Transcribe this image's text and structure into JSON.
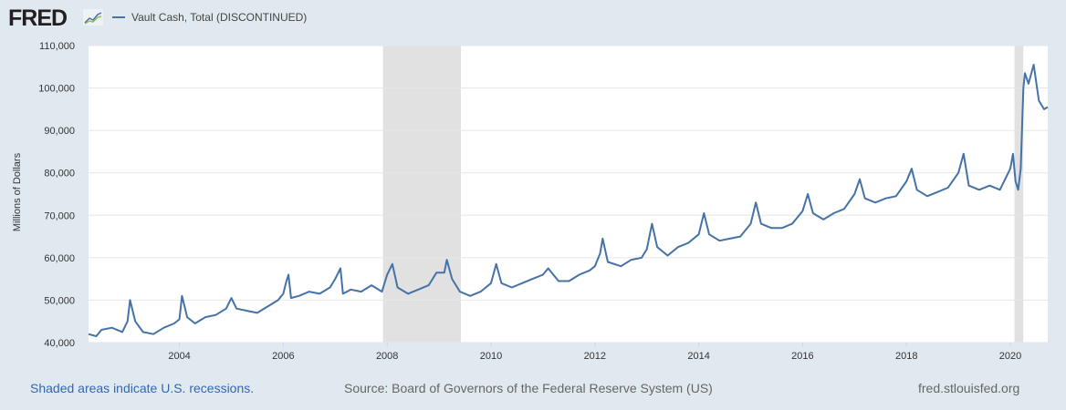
{
  "header": {
    "logo": "FRED",
    "legend_label": "Vault Cash, Total (DISCONTINUED)",
    "series_color": "#4572a7"
  },
  "footer": {
    "recession_note": "Shaded areas indicate U.S. recessions.",
    "source": "Source: Board of Governors of the Federal Reserve System (US)",
    "site": "fred.stlouisfed.org"
  },
  "chart_data": {
    "type": "line",
    "title": "Vault Cash, Total (DISCONTINUED)",
    "xlabel": "",
    "ylabel": "Millions of Dollars",
    "xlim": [
      2002.25,
      2020.72
    ],
    "ylim": [
      40000,
      110000
    ],
    "yticks": [
      40000,
      50000,
      60000,
      70000,
      80000,
      90000,
      100000,
      110000
    ],
    "ytick_labels": [
      "40,000",
      "50,000",
      "60,000",
      "70,000",
      "80,000",
      "90,000",
      "100,000",
      "110,000"
    ],
    "xticks": [
      2004,
      2006,
      2008,
      2010,
      2012,
      2014,
      2016,
      2018,
      2020
    ],
    "xtick_labels": [
      "2004",
      "2006",
      "2008",
      "2010",
      "2012",
      "2014",
      "2016",
      "2018",
      "2020"
    ],
    "grid": true,
    "recessions": [
      [
        2007.92,
        2009.42
      ],
      [
        2020.08,
        2020.25
      ]
    ],
    "series": [
      {
        "name": "Vault Cash, Total (DISCONTINUED)",
        "points": [
          [
            2002.25,
            42000
          ],
          [
            2002.4,
            41500
          ],
          [
            2002.5,
            43000
          ],
          [
            2002.7,
            43500
          ],
          [
            2002.9,
            42500
          ],
          [
            2003.0,
            45000
          ],
          [
            2003.05,
            50000
          ],
          [
            2003.15,
            45000
          ],
          [
            2003.3,
            42500
          ],
          [
            2003.5,
            42000
          ],
          [
            2003.7,
            43500
          ],
          [
            2003.9,
            44500
          ],
          [
            2004.0,
            45500
          ],
          [
            2004.05,
            51000
          ],
          [
            2004.15,
            46000
          ],
          [
            2004.3,
            44500
          ],
          [
            2004.5,
            46000
          ],
          [
            2004.7,
            46500
          ],
          [
            2004.9,
            48000
          ],
          [
            2005.0,
            50500
          ],
          [
            2005.1,
            48000
          ],
          [
            2005.3,
            47500
          ],
          [
            2005.5,
            47000
          ],
          [
            2005.7,
            48500
          ],
          [
            2005.9,
            50000
          ],
          [
            2006.0,
            51500
          ],
          [
            2006.05,
            54000
          ],
          [
            2006.1,
            56000
          ],
          [
            2006.15,
            50500
          ],
          [
            2006.3,
            51000
          ],
          [
            2006.5,
            52000
          ],
          [
            2006.7,
            51500
          ],
          [
            2006.9,
            53000
          ],
          [
            2007.0,
            55000
          ],
          [
            2007.1,
            57500
          ],
          [
            2007.15,
            51500
          ],
          [
            2007.3,
            52500
          ],
          [
            2007.5,
            52000
          ],
          [
            2007.7,
            53500
          ],
          [
            2007.9,
            52000
          ],
          [
            2008.0,
            56000
          ],
          [
            2008.1,
            58500
          ],
          [
            2008.2,
            53000
          ],
          [
            2008.4,
            51500
          ],
          [
            2008.6,
            52500
          ],
          [
            2008.8,
            53500
          ],
          [
            2008.95,
            56500
          ],
          [
            2009.1,
            56500
          ],
          [
            2009.15,
            59500
          ],
          [
            2009.25,
            55000
          ],
          [
            2009.4,
            52000
          ],
          [
            2009.6,
            51000
          ],
          [
            2009.8,
            52000
          ],
          [
            2010.0,
            54000
          ],
          [
            2010.1,
            58500
          ],
          [
            2010.2,
            54000
          ],
          [
            2010.4,
            53000
          ],
          [
            2010.6,
            54000
          ],
          [
            2010.8,
            55000
          ],
          [
            2011.0,
            56000
          ],
          [
            2011.1,
            57500
          ],
          [
            2011.3,
            54500
          ],
          [
            2011.5,
            54500
          ],
          [
            2011.7,
            56000
          ],
          [
            2011.9,
            57000
          ],
          [
            2012.0,
            58000
          ],
          [
            2012.1,
            61000
          ],
          [
            2012.15,
            64500
          ],
          [
            2012.25,
            59000
          ],
          [
            2012.5,
            58000
          ],
          [
            2012.7,
            59500
          ],
          [
            2012.9,
            60000
          ],
          [
            2013.0,
            62000
          ],
          [
            2013.1,
            68000
          ],
          [
            2013.2,
            62500
          ],
          [
            2013.4,
            60500
          ],
          [
            2013.6,
            62500
          ],
          [
            2013.8,
            63500
          ],
          [
            2014.0,
            65500
          ],
          [
            2014.1,
            70500
          ],
          [
            2014.2,
            65500
          ],
          [
            2014.4,
            64000
          ],
          [
            2014.6,
            64500
          ],
          [
            2014.8,
            65000
          ],
          [
            2015.0,
            68000
          ],
          [
            2015.1,
            73000
          ],
          [
            2015.2,
            68000
          ],
          [
            2015.4,
            67000
          ],
          [
            2015.6,
            67000
          ],
          [
            2015.8,
            68000
          ],
          [
            2016.0,
            71000
          ],
          [
            2016.1,
            75000
          ],
          [
            2016.2,
            70500
          ],
          [
            2016.4,
            69000
          ],
          [
            2016.6,
            70500
          ],
          [
            2016.8,
            71500
          ],
          [
            2017.0,
            75000
          ],
          [
            2017.1,
            78500
          ],
          [
            2017.2,
            74000
          ],
          [
            2017.4,
            73000
          ],
          [
            2017.6,
            74000
          ],
          [
            2017.8,
            74500
          ],
          [
            2018.0,
            78000
          ],
          [
            2018.1,
            81000
          ],
          [
            2018.2,
            76000
          ],
          [
            2018.4,
            74500
          ],
          [
            2018.6,
            75500
          ],
          [
            2018.8,
            76500
          ],
          [
            2019.0,
            80000
          ],
          [
            2019.1,
            84500
          ],
          [
            2019.2,
            77000
          ],
          [
            2019.4,
            76000
          ],
          [
            2019.6,
            77000
          ],
          [
            2019.8,
            76000
          ],
          [
            2020.0,
            81000
          ],
          [
            2020.05,
            84500
          ],
          [
            2020.1,
            78000
          ],
          [
            2020.15,
            76000
          ],
          [
            2020.2,
            81000
          ],
          [
            2020.25,
            100000
          ],
          [
            2020.28,
            103500
          ],
          [
            2020.35,
            101000
          ],
          [
            2020.45,
            105500
          ],
          [
            2020.55,
            97000
          ],
          [
            2020.65,
            95000
          ],
          [
            2020.72,
            95500
          ]
        ]
      }
    ]
  }
}
